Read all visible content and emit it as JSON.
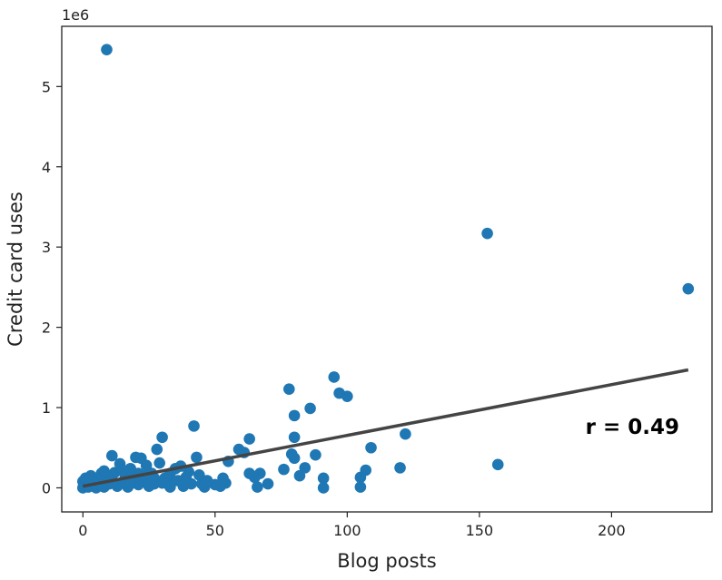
{
  "chart_data": {
    "type": "scatter",
    "title": "",
    "xlabel": "Blog posts",
    "ylabel": "Credit card uses",
    "y_offset_label": "1e6",
    "xlim": [
      -8,
      238
    ],
    "ylim": [
      -0.3,
      5.75
    ],
    "x_ticks": [
      0,
      50,
      100,
      150,
      200
    ],
    "y_ticks": [
      0,
      1,
      2,
      3,
      4,
      5
    ],
    "y_tick_labels": [
      "0",
      "1",
      "2",
      "3",
      "4",
      "5"
    ],
    "grid": false,
    "annotation": "r = 0.49",
    "point_color": "#1f77b4",
    "line_color": "#444444",
    "series": [
      {
        "values": [
          {
            "x": 9,
            "y": 5.46
          },
          {
            "x": 153,
            "y": 3.17
          },
          {
            "x": 229,
            "y": 2.48
          },
          {
            "x": 157,
            "y": 0.29
          },
          {
            "x": 122,
            "y": 0.67
          },
          {
            "x": 120,
            "y": 0.25
          },
          {
            "x": 109,
            "y": 0.5
          },
          {
            "x": 107,
            "y": 0.22
          },
          {
            "x": 105,
            "y": 0.13
          },
          {
            "x": 105,
            "y": 0.01
          },
          {
            "x": 100,
            "y": 1.14
          },
          {
            "x": 97,
            "y": 1.18
          },
          {
            "x": 95,
            "y": 1.38
          },
          {
            "x": 91,
            "y": 0.12
          },
          {
            "x": 91,
            "y": 0.0
          },
          {
            "x": 88,
            "y": 0.41
          },
          {
            "x": 86,
            "y": 0.99
          },
          {
            "x": 84,
            "y": 0.25
          },
          {
            "x": 82,
            "y": 0.15
          },
          {
            "x": 80,
            "y": 0.9
          },
          {
            "x": 80,
            "y": 0.63
          },
          {
            "x": 80,
            "y": 0.37
          },
          {
            "x": 79,
            "y": 0.42
          },
          {
            "x": 78,
            "y": 1.23
          },
          {
            "x": 76,
            "y": 0.23
          },
          {
            "x": 70,
            "y": 0.05
          },
          {
            "x": 67,
            "y": 0.18
          },
          {
            "x": 66,
            "y": 0.01
          },
          {
            "x": 65,
            "y": 0.13
          },
          {
            "x": 63,
            "y": 0.61
          },
          {
            "x": 63,
            "y": 0.18
          },
          {
            "x": 61,
            "y": 0.44
          },
          {
            "x": 59,
            "y": 0.48
          },
          {
            "x": 55,
            "y": 0.33
          },
          {
            "x": 54,
            "y": 0.06
          },
          {
            "x": 52,
            "y": 0.02
          },
          {
            "x": 50,
            "y": 0.04
          },
          {
            "x": 46,
            "y": 0.01
          },
          {
            "x": 45,
            "y": 0.05
          },
          {
            "x": 44,
            "y": 0.16
          },
          {
            "x": 43,
            "y": 0.38
          },
          {
            "x": 42,
            "y": 0.77
          },
          {
            "x": 41,
            "y": 0.05
          },
          {
            "x": 40,
            "y": 0.2
          },
          {
            "x": 38,
            "y": 0.02
          },
          {
            "x": 37,
            "y": 0.27
          },
          {
            "x": 35,
            "y": 0.24
          },
          {
            "x": 34,
            "y": 0.08
          },
          {
            "x": 33,
            "y": 0.01
          },
          {
            "x": 31,
            "y": 0.12
          },
          {
            "x": 30,
            "y": 0.63
          },
          {
            "x": 29,
            "y": 0.31
          },
          {
            "x": 28,
            "y": 0.48
          },
          {
            "x": 27,
            "y": 0.05
          },
          {
            "x": 26,
            "y": 0.18
          },
          {
            "x": 25,
            "y": 0.02
          },
          {
            "x": 24,
            "y": 0.09
          },
          {
            "x": 23,
            "y": 0.15
          },
          {
            "x": 22,
            "y": 0.37
          },
          {
            "x": 21,
            "y": 0.04
          },
          {
            "x": 20,
            "y": 0.38
          },
          {
            "x": 19,
            "y": 0.11
          },
          {
            "x": 18,
            "y": 0.24
          },
          {
            "x": 17,
            "y": 0.01
          },
          {
            "x": 16,
            "y": 0.16
          },
          {
            "x": 15,
            "y": 0.07
          },
          {
            "x": 14,
            "y": 0.3
          },
          {
            "x": 13,
            "y": 0.02
          },
          {
            "x": 12,
            "y": 0.19
          },
          {
            "x": 11,
            "y": 0.4
          },
          {
            "x": 10,
            "y": 0.05
          },
          {
            "x": 9,
            "y": 0.13
          },
          {
            "x": 8,
            "y": 0.01
          },
          {
            "x": 7,
            "y": 0.18
          },
          {
            "x": 6,
            "y": 0.04
          },
          {
            "x": 5,
            "y": 0.09
          },
          {
            "x": 4,
            "y": 0.02
          },
          {
            "x": 3,
            "y": 0.06
          },
          {
            "x": 2,
            "y": 0.11
          },
          {
            "x": 1,
            "y": 0.03
          },
          {
            "x": 0,
            "y": 0.0
          },
          {
            "x": 0,
            "y": 0.08
          },
          {
            "x": 1,
            "y": 0.12
          },
          {
            "x": 2,
            "y": 0.01
          },
          {
            "x": 3,
            "y": 0.15
          },
          {
            "x": 4,
            "y": 0.07
          },
          {
            "x": 5,
            "y": 0.0
          },
          {
            "x": 6,
            "y": 0.13
          },
          {
            "x": 7,
            "y": 0.03
          },
          {
            "x": 8,
            "y": 0.21
          },
          {
            "x": 12,
            "y": 0.06
          },
          {
            "x": 15,
            "y": 0.22
          },
          {
            "x": 18,
            "y": 0.05
          },
          {
            "x": 21,
            "y": 0.18
          },
          {
            "x": 24,
            "y": 0.28
          },
          {
            "x": 27,
            "y": 0.12
          },
          {
            "x": 30,
            "y": 0.06
          },
          {
            "x": 33,
            "y": 0.18
          },
          {
            "x": 36,
            "y": 0.09
          },
          {
            "x": 39,
            "y": 0.13
          },
          {
            "x": 47,
            "y": 0.09
          },
          {
            "x": 53,
            "y": 0.12
          }
        ]
      }
    ],
    "trend_line": {
      "x": [
        0,
        229
      ],
      "y": [
        0.02,
        1.47
      ]
    }
  }
}
